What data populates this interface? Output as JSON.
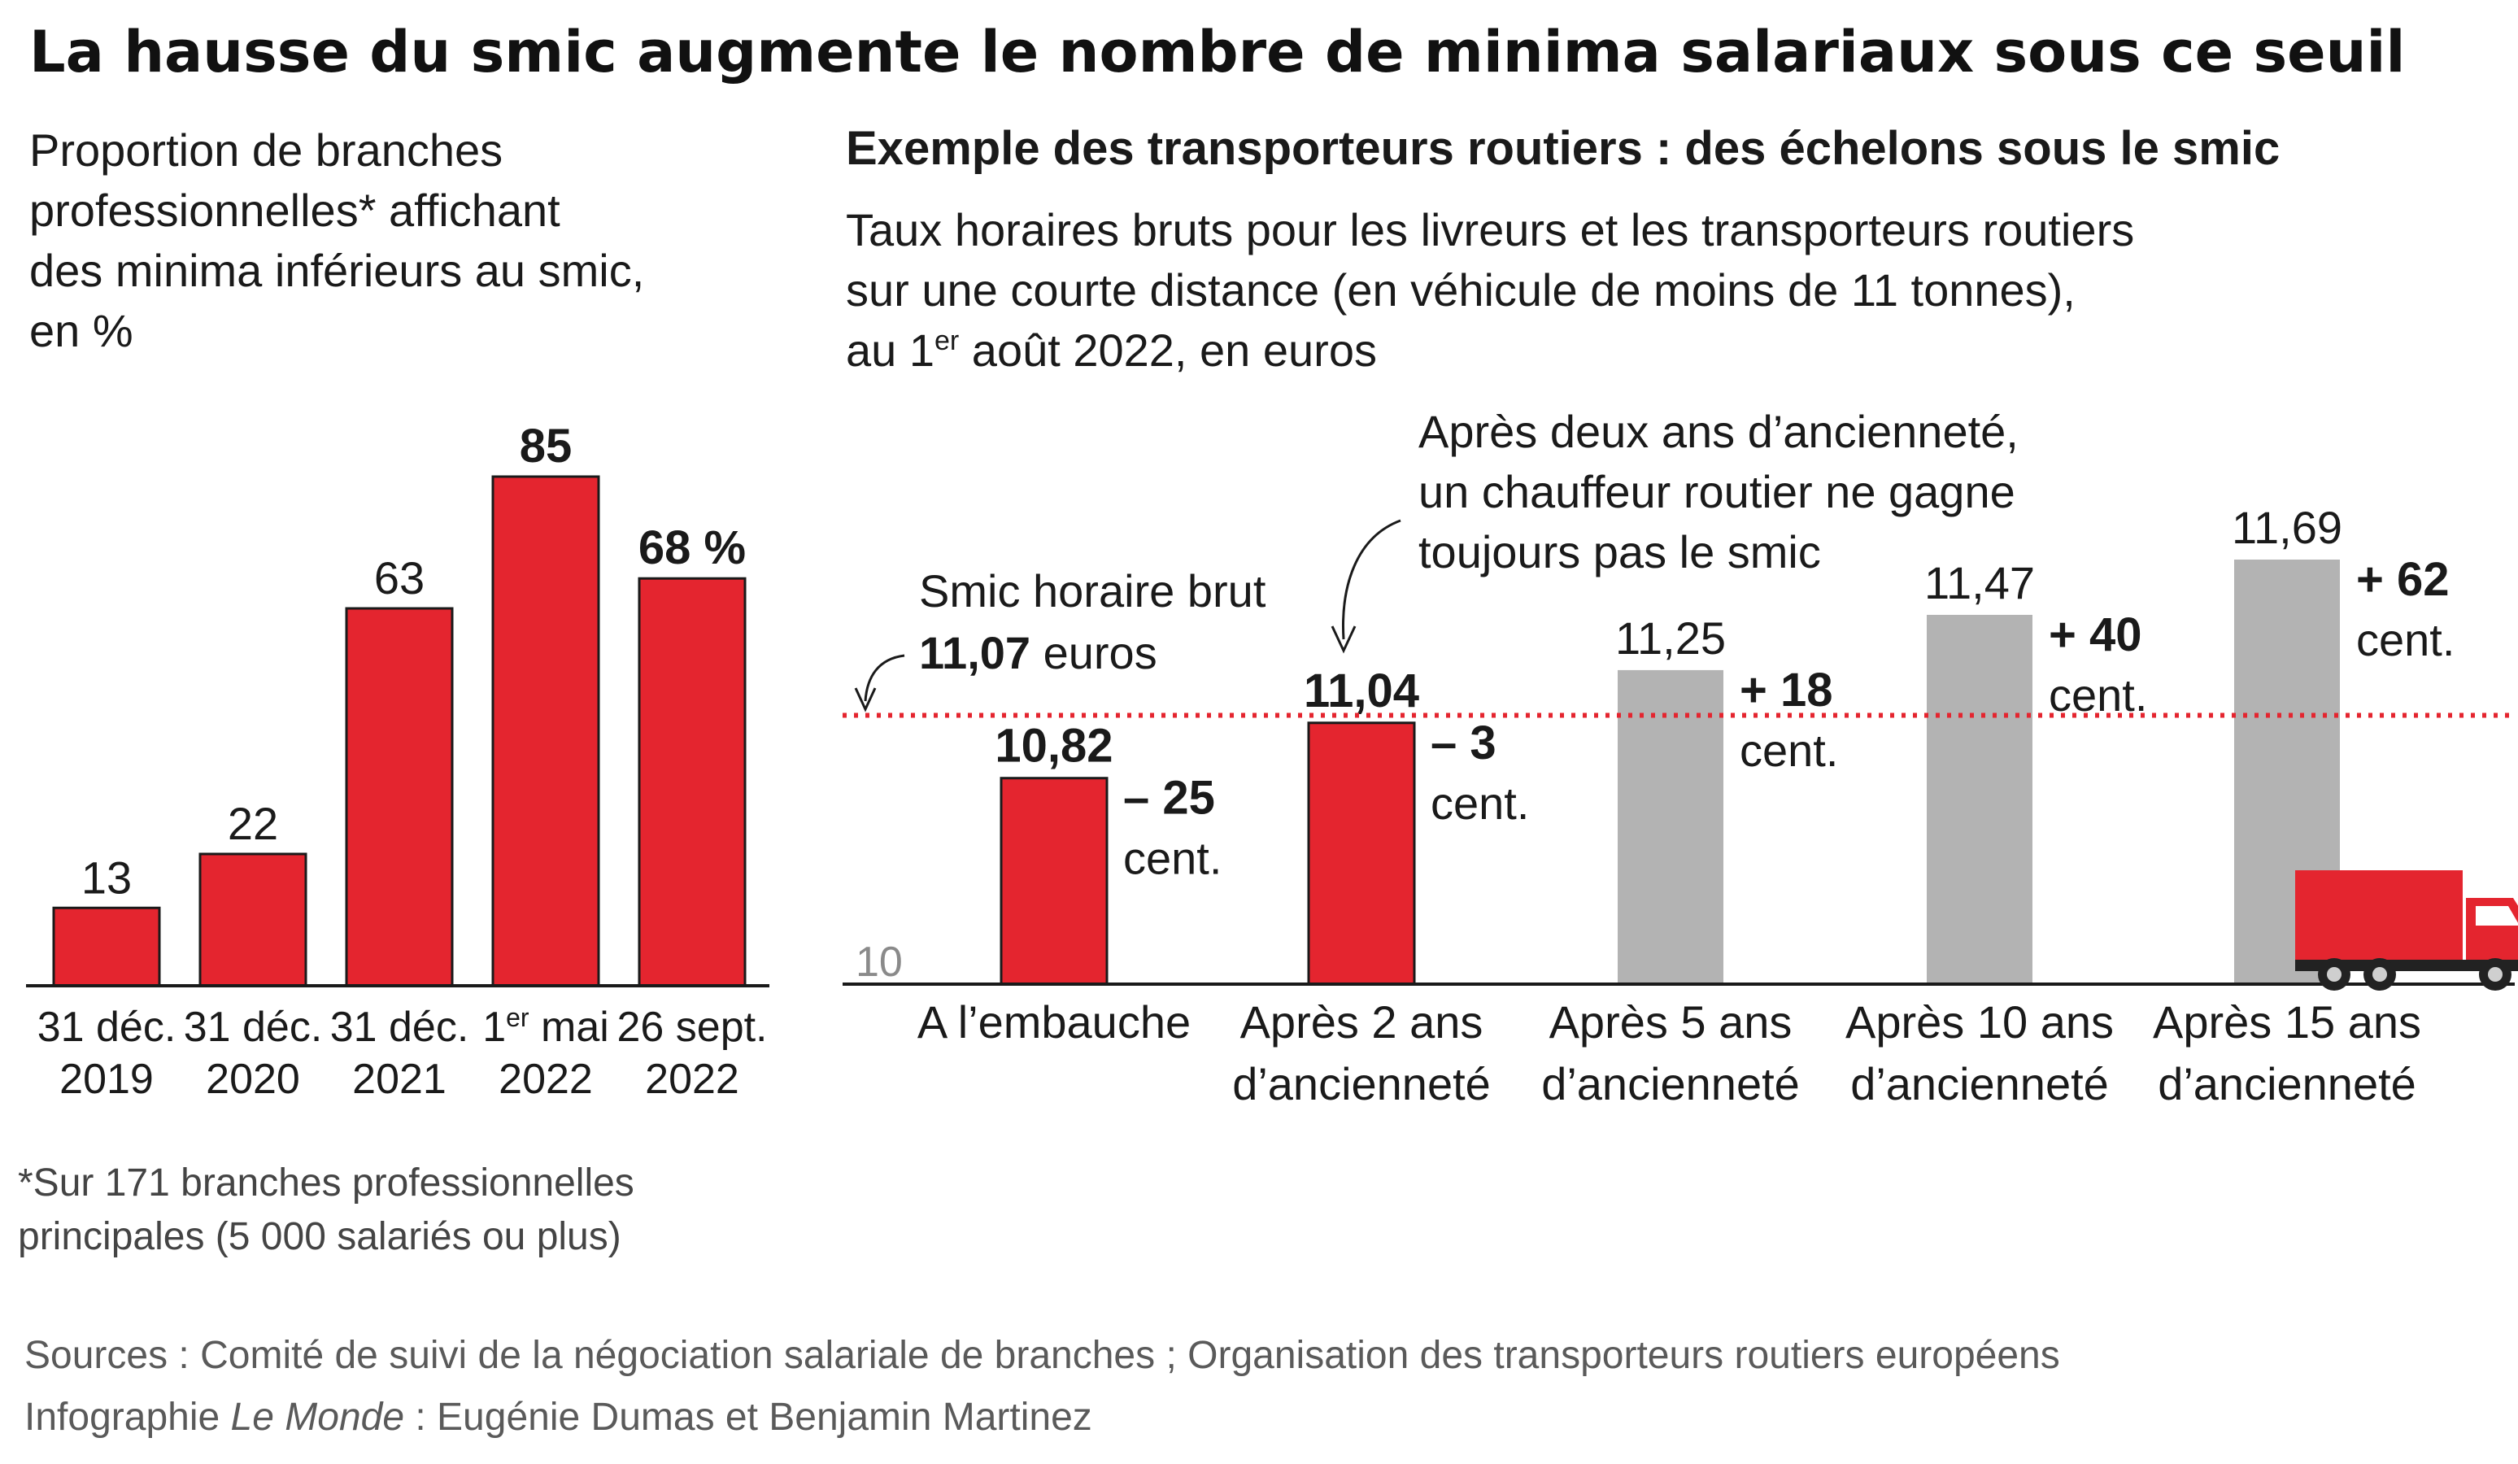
{
  "title": "La hausse du smic augmente le nombre de minima salariaux sous ce seuil",
  "colors": {
    "red": "#e4252f",
    "grey": "#b3b3b3",
    "dotted_line": "#e4252f"
  },
  "chart_data": [
    {
      "type": "bar",
      "subtitle_lines": [
        "Proportion de branches",
        "professionnelles* affichant",
        "des minima inférieurs au smic,",
        "en %"
      ],
      "categories": [
        {
          "line1": "31 déc.",
          "line1_sup": "",
          "line1_rest": "",
          "line2": "2019"
        },
        {
          "line1": "31 déc.",
          "line1_sup": "",
          "line1_rest": "",
          "line2": "2020"
        },
        {
          "line1": "31 déc.",
          "line1_sup": "",
          "line1_rest": "",
          "line2": "2021"
        },
        {
          "line1": "1",
          "line1_sup": "er",
          "line1_rest": " mai",
          "line2": "2022"
        },
        {
          "line1": "26 sept.",
          "line1_sup": "",
          "line1_rest": "",
          "line2": "2022"
        }
      ],
      "values": [
        13,
        22,
        63,
        85,
        68
      ],
      "value_labels": [
        "13",
        "22",
        "63",
        "85",
        "68 %"
      ],
      "bold_labels": [
        false,
        false,
        false,
        true,
        true
      ],
      "ylim": [
        0,
        85
      ],
      "footnote_lines": [
        "*Sur 171 branches professionnelles",
        "principales (5 000 salariés ou plus)"
      ]
    },
    {
      "type": "bar",
      "title": "Exemple des transporteurs routiers : des échelons sous le smic",
      "subtitle_lines": [
        {
          "text": "Taux horaires bruts pour les livreurs et les transporteurs routiers",
          "sup": "",
          "rest": ""
        },
        {
          "text": "sur une courte distance (en véhicule de moins de 11 tonnes),",
          "sup": "",
          "rest": ""
        },
        {
          "text": "au 1",
          "sup": "er",
          "rest": " août 2022, en euros"
        }
      ],
      "categories": [
        [
          "A l’embauche"
        ],
        [
          "Après 2 ans",
          "d’ancienneté"
        ],
        [
          "Après 5 ans",
          "d’ancienneté"
        ],
        [
          "Après 10 ans",
          "d’ancienneté"
        ],
        [
          "Après 15 ans",
          "d’ancienneté"
        ]
      ],
      "values": [
        10.82,
        11.04,
        11.25,
        11.47,
        11.69
      ],
      "value_labels": [
        "10,82",
        "11,04",
        "11,25",
        "11,47",
        "11,69"
      ],
      "below_smic": [
        true,
        true,
        false,
        false,
        false
      ],
      "diff_labels": [
        {
          "sign": "– 25",
          "unit": "cent."
        },
        {
          "sign": "– 3",
          "unit": "cent."
        },
        {
          "sign": "+ 18",
          "unit": "cent."
        },
        {
          "sign": "+ 40",
          "unit": "cent."
        },
        {
          "sign": "+ 62",
          "unit": "cent."
        }
      ],
      "y_axis_baseline_label": "10",
      "ylim": [
        10,
        11.69
      ],
      "reference_line": {
        "value": 11.07,
        "label_line1": "Smic horaire brut",
        "label_value": "11,07",
        "label_unit": " euros"
      },
      "annotation_lines": [
        "Après deux ans d’ancienneté,",
        "un chauffeur routier ne gagne",
        "toujours pas le smic"
      ],
      "icon": "delivery-truck-icon"
    }
  ],
  "sources": "Sources : Comité de suivi de la négociation salariale de branches ; Organisation des transporteurs routiers européens",
  "credit": {
    "prefix": "Infographie ",
    "publication": "Le Monde",
    "suffix": " : Eugénie Dumas et Benjamin Martinez"
  }
}
